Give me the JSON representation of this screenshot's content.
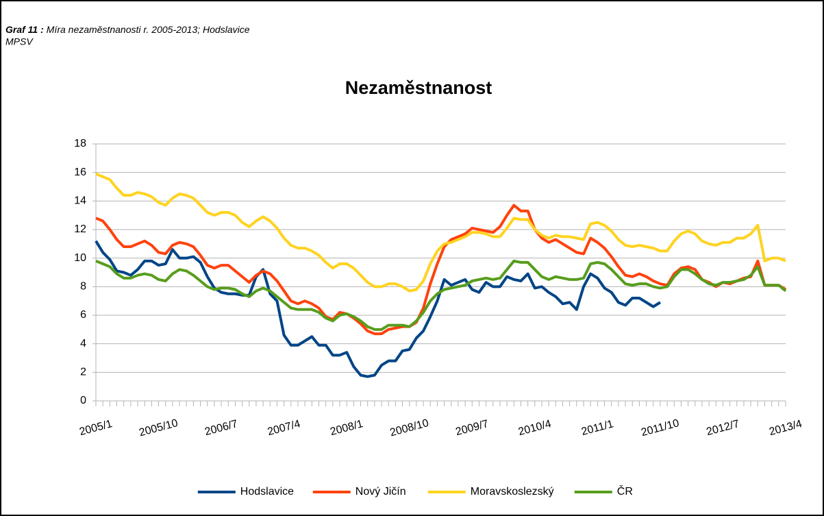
{
  "heading_label": "Graf 11 :",
  "heading_text": "Míra nezaměstnanosti r. 2005-2013; Hodslavice",
  "source": "MPSV",
  "chart_data": {
    "type": "line",
    "title": "Nezaměstnanost",
    "categories": [
      "2005/1",
      null,
      null,
      null,
      null,
      null,
      null,
      null,
      null,
      "2005/10",
      null,
      null,
      null,
      null,
      null,
      null,
      null,
      null,
      "2006/7",
      null,
      null,
      null,
      null,
      null,
      null,
      null,
      null,
      "2007/4",
      null,
      null,
      null,
      null,
      null,
      null,
      null,
      null,
      "2008/1",
      null,
      null,
      null,
      null,
      null,
      null,
      null,
      null,
      "2008/10",
      null,
      null,
      null,
      null,
      null,
      null,
      null,
      null,
      "2009/7",
      null,
      null,
      null,
      null,
      null,
      null,
      null,
      null,
      "2010/4",
      null,
      null,
      null,
      null,
      null,
      null,
      null,
      null,
      "2011/1",
      null,
      null,
      null,
      null,
      null,
      null,
      null,
      null,
      "2011/10",
      null,
      null,
      null,
      null,
      null,
      null,
      null,
      null,
      "2012/7",
      null,
      null,
      null,
      null,
      null,
      null,
      null,
      null,
      "2013/4"
    ],
    "ylim": [
      0,
      18
    ],
    "yticks": [
      0,
      2,
      4,
      6,
      8,
      10,
      12,
      14,
      16,
      18
    ],
    "grid": true,
    "legend": "bottom",
    "series": [
      {
        "name": "Hodslavice",
        "color": "#004586",
        "values": [
          11.2,
          10.4,
          9.9,
          9.1,
          9.0,
          8.8,
          9.2,
          9.8,
          9.8,
          9.5,
          9.6,
          10.6,
          10.0,
          10.0,
          10.1,
          9.7,
          8.7,
          7.9,
          7.6,
          7.5,
          7.5,
          7.4,
          7.4,
          8.7,
          9.2,
          7.5,
          7.0,
          4.6,
          3.9,
          3.9,
          4.2,
          4.5,
          3.9,
          3.9,
          3.2,
          3.2,
          3.4,
          2.4,
          1.8,
          1.7,
          1.8,
          2.5,
          2.8,
          2.8,
          3.5,
          3.6,
          4.4,
          4.9,
          5.9,
          7.0,
          8.5,
          8.1,
          8.3,
          8.5,
          7.8,
          7.6,
          8.3,
          8.0,
          8.0,
          8.7,
          8.5,
          8.4,
          8.9,
          7.9,
          8.0,
          7.6,
          7.3,
          6.8,
          6.9,
          6.4,
          8.0,
          8.9,
          8.6,
          7.9,
          7.6,
          6.9,
          6.7,
          7.2,
          7.2,
          6.9,
          6.6,
          6.9,
          null,
          null,
          null,
          null,
          null,
          null,
          null,
          null,
          null,
          null,
          null,
          null,
          null,
          null,
          null,
          null,
          null,
          null
        ]
      },
      {
        "name": "Nový Jičín",
        "color": "#ff420e",
        "values": [
          12.8,
          12.6,
          12.0,
          11.3,
          10.8,
          10.8,
          11.0,
          11.2,
          10.9,
          10.4,
          10.3,
          10.9,
          11.1,
          11.0,
          10.8,
          10.2,
          9.5,
          9.3,
          9.5,
          9.5,
          9.1,
          8.7,
          8.3,
          8.8,
          9.1,
          8.9,
          8.4,
          7.7,
          7.0,
          6.8,
          7.0,
          6.8,
          6.5,
          5.9,
          5.7,
          6.2,
          6.1,
          5.8,
          5.4,
          4.9,
          4.7,
          4.7,
          5.0,
          5.1,
          5.2,
          5.2,
          5.5,
          6.5,
          8.2,
          9.6,
          10.8,
          11.3,
          11.5,
          11.7,
          12.1,
          12.0,
          11.9,
          11.8,
          12.2,
          13.0,
          13.7,
          13.3,
          13.3,
          12.0,
          11.4,
          11.1,
          11.3,
          11.0,
          10.7,
          10.4,
          10.3,
          11.4,
          11.1,
          10.7,
          10.1,
          9.4,
          8.8,
          8.7,
          8.9,
          8.7,
          8.4,
          8.2,
          8.1,
          8.9,
          9.3,
          9.4,
          9.2,
          8.5,
          8.3,
          8.0,
          8.3,
          8.2,
          8.4,
          8.6,
          8.7,
          9.8,
          8.1,
          8.1,
          8.1,
          7.8
        ]
      },
      {
        "name": "Moravskoslezský",
        "color": "#ffd320",
        "values": [
          15.9,
          15.7,
          15.5,
          14.9,
          14.4,
          14.4,
          14.6,
          14.5,
          14.3,
          13.9,
          13.7,
          14.2,
          14.5,
          14.4,
          14.2,
          13.7,
          13.2,
          13.0,
          13.2,
          13.2,
          13.0,
          12.5,
          12.2,
          12.6,
          12.9,
          12.6,
          12.1,
          11.4,
          10.9,
          10.7,
          10.7,
          10.5,
          10.2,
          9.7,
          9.3,
          9.6,
          9.6,
          9.3,
          8.8,
          8.3,
          8.0,
          8.0,
          8.2,
          8.2,
          8.0,
          7.7,
          7.8,
          8.4,
          9.6,
          10.5,
          11.0,
          11.1,
          11.3,
          11.5,
          11.8,
          11.8,
          11.7,
          11.5,
          11.5,
          12.1,
          12.8,
          12.7,
          12.7,
          12.0,
          11.6,
          11.4,
          11.6,
          11.5,
          11.5,
          11.4,
          11.3,
          12.4,
          12.5,
          12.3,
          11.9,
          11.3,
          10.9,
          10.8,
          10.9,
          10.8,
          10.7,
          10.5,
          10.5,
          11.2,
          11.7,
          11.9,
          11.7,
          11.2,
          11.0,
          10.9,
          11.1,
          11.1,
          11.4,
          11.4,
          11.7,
          12.3,
          9.8,
          10.0,
          10.0,
          9.8
        ]
      },
      {
        "name": "ČR",
        "color": "#579d1c",
        "values": [
          9.8,
          9.6,
          9.4,
          8.9,
          8.6,
          8.6,
          8.8,
          8.9,
          8.8,
          8.5,
          8.4,
          8.9,
          9.2,
          9.1,
          8.8,
          8.4,
          8.0,
          7.8,
          7.9,
          7.9,
          7.8,
          7.5,
          7.3,
          7.7,
          7.9,
          7.7,
          7.3,
          6.9,
          6.5,
          6.4,
          6.4,
          6.4,
          6.2,
          5.8,
          5.6,
          6.0,
          6.1,
          5.9,
          5.6,
          5.2,
          5.0,
          5.0,
          5.3,
          5.3,
          5.3,
          5.2,
          5.6,
          6.2,
          7.0,
          7.5,
          7.8,
          7.9,
          8.0,
          8.1,
          8.4,
          8.5,
          8.6,
          8.5,
          8.6,
          9.2,
          9.8,
          9.7,
          9.7,
          9.2,
          8.7,
          8.5,
          8.7,
          8.6,
          8.5,
          8.5,
          8.6,
          9.6,
          9.7,
          9.6,
          9.2,
          8.7,
          8.2,
          8.1,
          8.2,
          8.2,
          8.0,
          7.9,
          8.0,
          8.7,
          9.2,
          9.2,
          8.9,
          8.5,
          8.2,
          8.1,
          8.3,
          8.3,
          8.4,
          8.5,
          8.8,
          9.4,
          8.1,
          8.1,
          8.1,
          7.7
        ]
      }
    ]
  }
}
